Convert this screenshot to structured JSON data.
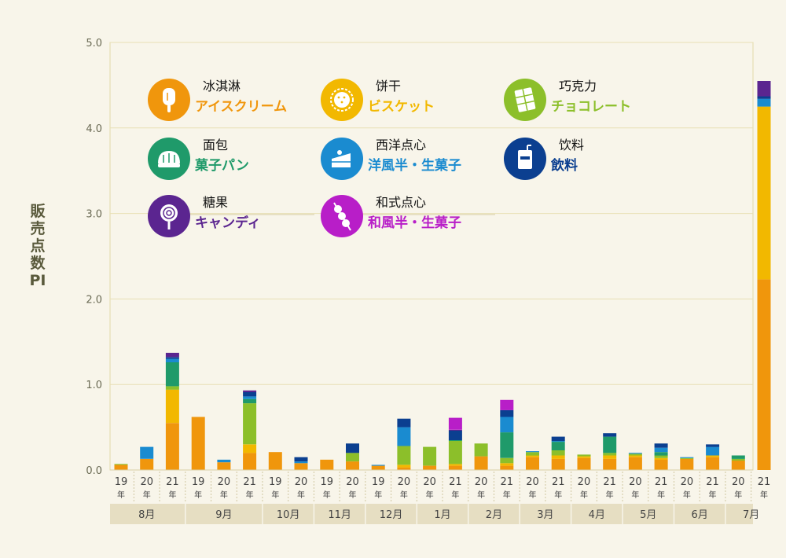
{
  "y_axis_label": "販売点数PI",
  "legend": [
    {
      "cn": "冰淇淋",
      "jp": "アイスクリーム",
      "color": "#f0960c",
      "icon": "ice-cream-icon"
    },
    {
      "cn": "饼干",
      "jp": "ビスケット",
      "color": "#f2b800",
      "icon": "biscuit-icon"
    },
    {
      "cn": "巧克力",
      "jp": "チョコレート",
      "color": "#8cbf2a",
      "icon": "chocolate-icon"
    },
    {
      "cn": "面包",
      "jp": "菓子パン",
      "color": "#1f9a6a",
      "icon": "bread-icon"
    },
    {
      "cn": "西洋点心",
      "jp": "洋風半・生菓子",
      "color": "#1a8bd0",
      "icon": "cake-icon"
    },
    {
      "cn": "饮料",
      "jp": "飲料",
      "color": "#0b3f90",
      "icon": "drink-icon"
    },
    {
      "cn": "糖果",
      "jp": "キャンディ",
      "color": "#5b2590",
      "icon": "candy-icon"
    },
    {
      "cn": "和式点心",
      "jp": "和風半・生菓子",
      "color": "#b81ec8",
      "icon": "dango-icon"
    }
  ],
  "chart_data": {
    "type": "bar",
    "stacked": true,
    "ylabel": "販売点数PI",
    "ylim": [
      0,
      5.0
    ],
    "yticks": [
      "0.0",
      "1.0",
      "2.0",
      "3.0",
      "4.0",
      "5.0"
    ],
    "grid": true,
    "legend_position": "top-left",
    "year_suffix": "年",
    "months": [
      {
        "label": "8月",
        "years": [
          "19",
          "20",
          "21"
        ]
      },
      {
        "label": "9月",
        "years": [
          "19",
          "20",
          "21"
        ]
      },
      {
        "label": "10月",
        "years": [
          "19",
          "20"
        ]
      },
      {
        "label": "11月",
        "years": [
          "19",
          "20"
        ]
      },
      {
        "label": "12月",
        "years": [
          "19",
          "20"
        ]
      },
      {
        "label": "1月",
        "years": [
          "20",
          "21"
        ]
      },
      {
        "label": "2月",
        "years": [
          "20",
          "21"
        ]
      },
      {
        "label": "3月",
        "years": [
          "20",
          "21"
        ]
      },
      {
        "label": "4月",
        "years": [
          "20",
          "21"
        ]
      },
      {
        "label": "5月",
        "years": [
          "20",
          "21"
        ]
      },
      {
        "label": "6月",
        "years": [
          "20",
          "21"
        ]
      },
      {
        "label": "7月",
        "years": [
          "20",
          "21"
        ]
      }
    ],
    "series": [
      {
        "name": "アイスクリーム",
        "color": "#f0960c",
        "values": [
          0.06,
          0.13,
          0.55,
          0.62,
          0.09,
          0.2,
          0.21,
          0.08,
          0.12,
          0.1,
          0.05,
          0.03,
          0.05,
          0.05,
          0.16,
          0.05,
          0.15,
          0.13,
          0.14,
          0.13,
          0.15,
          0.12,
          0.13,
          0.15,
          0.11,
          2.23
        ]
      },
      {
        "name": "ビスケット",
        "color": "#f2b800",
        "values": [
          0,
          0,
          0.39,
          0,
          0,
          0.1,
          0,
          0,
          0,
          0,
          0,
          0.03,
          0,
          0.02,
          0,
          0.03,
          0.02,
          0.04,
          0.02,
          0.04,
          0.02,
          0.02,
          0,
          0.02,
          0,
          2.02
        ]
      },
      {
        "name": "チョコレート",
        "color": "#8cbf2a",
        "values": [
          0.01,
          0,
          0.04,
          0,
          0,
          0.48,
          0,
          0,
          0,
          0.1,
          0,
          0.22,
          0.22,
          0.27,
          0.15,
          0.06,
          0.04,
          0.06,
          0.02,
          0.03,
          0.02,
          0.03,
          0.01,
          0,
          0.02,
          0
        ]
      },
      {
        "name": "菓子パン",
        "color": "#1f9a6a",
        "values": [
          0,
          0,
          0.28,
          0,
          0,
          0.05,
          0,
          0,
          0,
          0,
          0,
          0,
          0,
          0.01,
          0,
          0.3,
          0,
          0.1,
          0,
          0.19,
          0,
          0.04,
          0,
          0,
          0.04,
          0
        ]
      },
      {
        "name": "洋風半・生菓子",
        "color": "#1a8bd0",
        "values": [
          0,
          0.14,
          0.04,
          0,
          0.03,
          0.03,
          0,
          0.02,
          0,
          0,
          0.01,
          0.22,
          0,
          0,
          0,
          0.18,
          0.01,
          0.01,
          0,
          0,
          0.01,
          0.05,
          0.01,
          0.1,
          0,
          0.09
        ]
      },
      {
        "name": "飲料",
        "color": "#0b3f90",
        "values": [
          0,
          0,
          0.02,
          0,
          0,
          0.05,
          0,
          0.05,
          0,
          0.11,
          0,
          0.1,
          0,
          0.11,
          0,
          0.08,
          0,
          0.05,
          0,
          0.04,
          0,
          0.05,
          0,
          0.03,
          0,
          0.03
        ]
      },
      {
        "name": "キャンディ",
        "color": "#5b2590",
        "values": [
          0,
          0,
          0.05,
          0,
          0,
          0.02,
          0,
          0,
          0,
          0,
          0,
          0,
          0,
          0.01,
          0,
          0,
          0,
          0,
          0,
          0,
          0,
          0,
          0,
          0,
          0,
          0.18
        ]
      },
      {
        "name": "和風半・生菓子",
        "color": "#b81ec8",
        "values": [
          0,
          0,
          0,
          0,
          0,
          0,
          0,
          0,
          0,
          0,
          0,
          0,
          0,
          0.14,
          0,
          0.12,
          0,
          0,
          0,
          0,
          0,
          0,
          0,
          0,
          0,
          0
        ]
      }
    ]
  }
}
